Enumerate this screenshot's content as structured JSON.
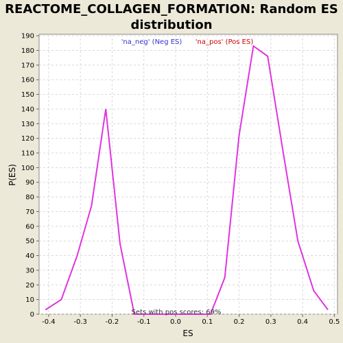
{
  "chart_data": {
    "type": "line",
    "title": "REACTOME_COLLAGEN_FORMATION: Random ES distribution",
    "xlabel": "ES",
    "ylabel": "P(ES)",
    "xlim": [
      -0.43,
      0.51
    ],
    "ylim": [
      0,
      191
    ],
    "x_ticks": [
      -0.4,
      -0.3,
      -0.2,
      -0.1,
      0.0,
      0.1,
      0.2,
      0.3,
      0.4,
      0.5
    ],
    "x_tick_labels": [
      "-0.4",
      "-0.3",
      "-0.2",
      "-0.1",
      "0.0",
      "0.1",
      "0.2",
      "0.3",
      "0.4",
      "0.5"
    ],
    "y_ticks": [
      0,
      10,
      20,
      30,
      40,
      50,
      60,
      70,
      80,
      90,
      100,
      110,
      120,
      130,
      140,
      150,
      160,
      170,
      180,
      190
    ],
    "grid": true,
    "legend": [
      {
        "label": "'na_neg' (Neg ES)",
        "color": "#3333cc"
      },
      {
        "label": "'na_pos' (Pos ES)",
        "color": "#cc0000"
      }
    ],
    "legend_position": "top-center",
    "annotation": "Sets with pos scores: 69%",
    "series": [
      {
        "color": "#e033e0",
        "x": [
          -0.41,
          -0.36,
          -0.31,
          -0.265,
          -0.22,
          -0.175,
          -0.13,
          -0.085,
          0.11,
          0.155,
          0.2,
          0.245,
          0.29,
          0.34,
          0.385,
          0.435,
          0.48
        ],
        "y": [
          3,
          10,
          40,
          74,
          140,
          48,
          0,
          0,
          0,
          25,
          122,
          183,
          176,
          109,
          50,
          16,
          3
        ]
      }
    ]
  }
}
